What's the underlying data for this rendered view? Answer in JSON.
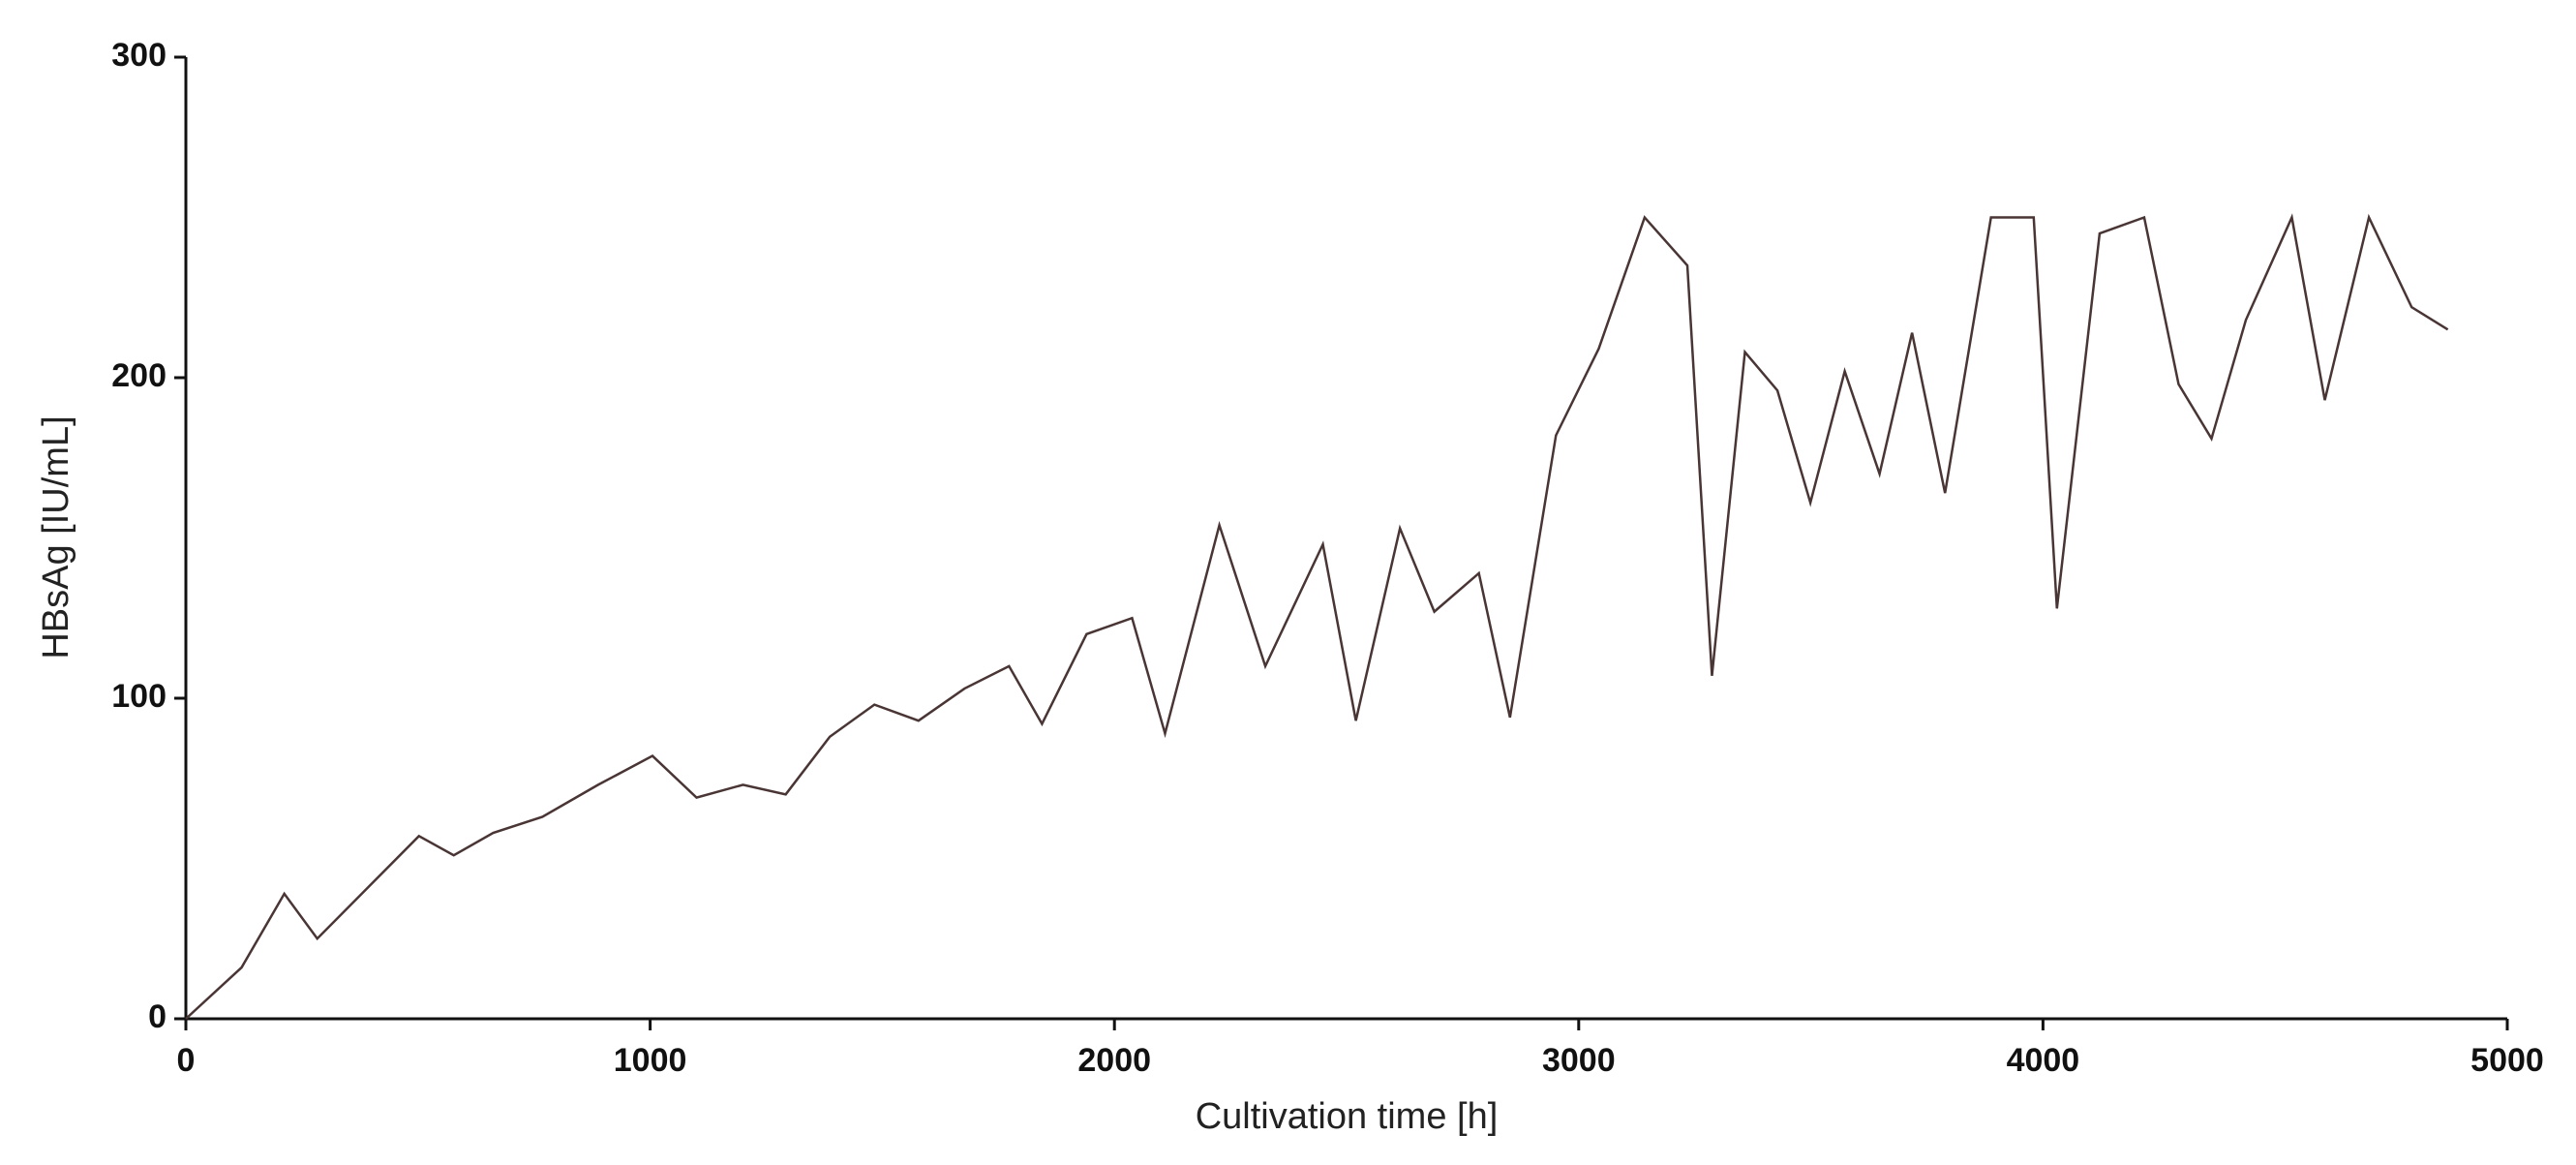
{
  "chart_data": {
    "type": "line",
    "x_label": "Cultivation time [h]",
    "y_label": "HBsAg [IU/mL]",
    "xlim": [
      0,
      5000
    ],
    "xticks": [
      0,
      1000,
      2000,
      3000,
      4000,
      5000
    ],
    "ylim": [
      0,
      300
    ],
    "yticks": [
      0,
      100,
      200,
      300
    ],
    "grid": false,
    "series": [
      {
        "color": "#4a3535",
        "x": [
          0,
          120,
          212,
          283,
          502,
          577,
          662,
          768,
          888,
          1005,
          1100,
          1200,
          1292,
          1387,
          1483,
          1578,
          1677,
          1773,
          1844,
          1940,
          2038,
          2109,
          2226,
          2325,
          2449,
          2520,
          2615,
          2689,
          2785,
          2852,
          2951,
          3043,
          3142,
          3234,
          3287,
          3358,
          3428,
          3499,
          3573,
          3648,
          3718,
          3789,
          3888,
          3980,
          4030,
          4122,
          4218,
          4292,
          4363,
          4437,
          4536,
          4607,
          4702,
          4794,
          4872
        ],
        "values": [
          0,
          16,
          39,
          25,
          57,
          51,
          58,
          63,
          73,
          82,
          69,
          73,
          70,
          88,
          98,
          93,
          103,
          110,
          92,
          120,
          125,
          89,
          154,
          110,
          148,
          93,
          153,
          127,
          139,
          94,
          182,
          209,
          250,
          235,
          107,
          208,
          196,
          161,
          202,
          170,
          214,
          164,
          250,
          250,
          128,
          245,
          250,
          198,
          181,
          218,
          250,
          193,
          250,
          222,
          215
        ]
      }
    ]
  }
}
